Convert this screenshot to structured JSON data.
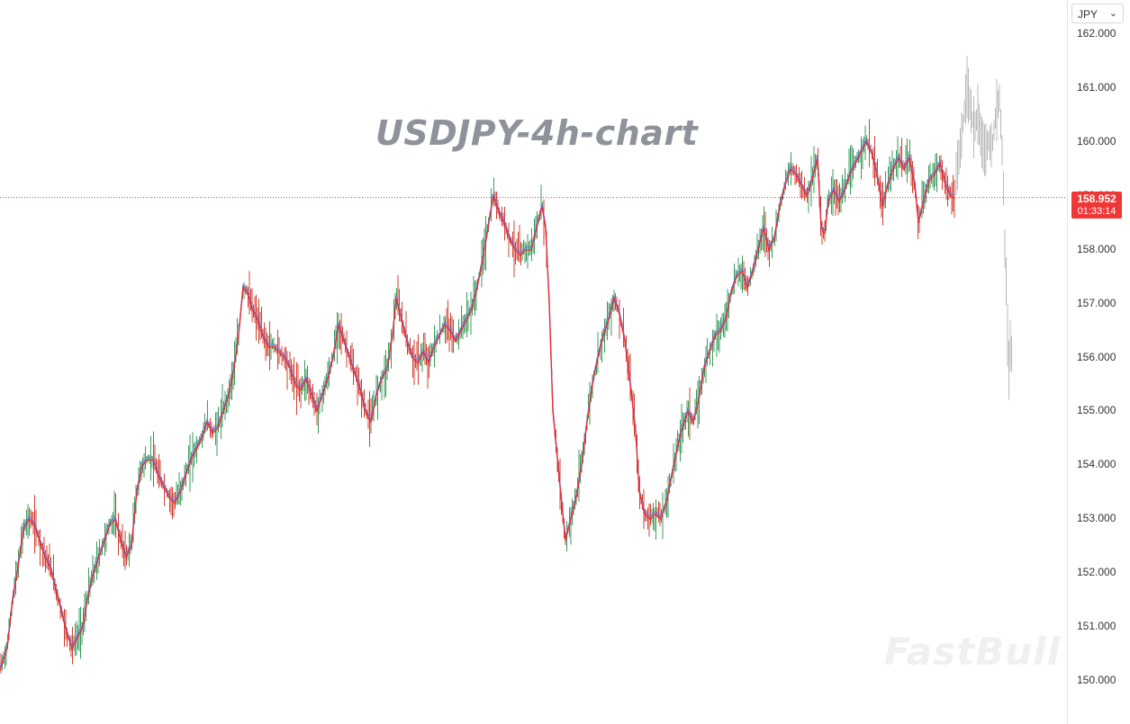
{
  "toolbar": {
    "currency": "JPY"
  },
  "watermark": "FastBull",
  "price_marker": {
    "price": "158.952",
    "countdown": "01:33:14",
    "color": "#ef3737"
  },
  "colors": {
    "up": "#3a9b5c",
    "down": "#d0402f",
    "ma_fast": "#ef2b2b",
    "ma_slow": "#6b7be3",
    "forecast": "#b8b8b8",
    "last_price_line": "#d0402f"
  },
  "chart_data": {
    "type": "candlestick",
    "title": "USDJPY-4h-chart",
    "ylabel": "",
    "y_ticks": [
      "162.000",
      "161.000",
      "160.000",
      "159.000",
      "158.000",
      "157.000",
      "156.000",
      "155.000",
      "154.000",
      "153.000",
      "152.000",
      "151.000",
      "150.000"
    ],
    "ylim": [
      149.65,
      162.3
    ],
    "last_price": 158.952,
    "grid": false,
    "close_path": [
      [
        0,
        150.2
      ],
      [
        8,
        150.6
      ],
      [
        14,
        151.5
      ],
      [
        20,
        152.1
      ],
      [
        26,
        152.8
      ],
      [
        32,
        153.0
      ],
      [
        38,
        152.9
      ],
      [
        44,
        152.6
      ],
      [
        50,
        152.3
      ],
      [
        56,
        152.1
      ],
      [
        62,
        151.7
      ],
      [
        68,
        151.3
      ],
      [
        74,
        150.9
      ],
      [
        80,
        150.6
      ],
      [
        86,
        150.8
      ],
      [
        92,
        151.0
      ],
      [
        98,
        151.6
      ],
      [
        104,
        152.0
      ],
      [
        110,
        152.3
      ],
      [
        116,
        152.6
      ],
      [
        122,
        152.9
      ],
      [
        128,
        153.0
      ],
      [
        134,
        152.6
      ],
      [
        140,
        152.3
      ],
      [
        146,
        152.5
      ],
      [
        152,
        153.5
      ],
      [
        158,
        154.0
      ],
      [
        164,
        154.1
      ],
      [
        170,
        154.1
      ],
      [
        176,
        153.8
      ],
      [
        182,
        153.6
      ],
      [
        188,
        153.4
      ],
      [
        194,
        153.3
      ],
      [
        200,
        153.5
      ],
      [
        206,
        153.8
      ],
      [
        212,
        154.1
      ],
      [
        218,
        154.3
      ],
      [
        224,
        154.5
      ],
      [
        230,
        154.8
      ],
      [
        236,
        154.6
      ],
      [
        242,
        154.7
      ],
      [
        248,
        155.0
      ],
      [
        254,
        155.3
      ],
      [
        260,
        155.8
      ],
      [
        265,
        156.4
      ],
      [
        270,
        157.3
      ],
      [
        275,
        157.2
      ],
      [
        280,
        156.9
      ],
      [
        286,
        156.7
      ],
      [
        292,
        156.4
      ],
      [
        298,
        156.2
      ],
      [
        304,
        156.2
      ],
      [
        310,
        156.1
      ],
      [
        316,
        156.0
      ],
      [
        322,
        155.8
      ],
      [
        328,
        155.5
      ],
      [
        334,
        155.4
      ],
      [
        340,
        155.6
      ],
      [
        346,
        155.3
      ],
      [
        352,
        155.0
      ],
      [
        358,
        155.3
      ],
      [
        364,
        155.6
      ],
      [
        370,
        156.0
      ],
      [
        376,
        156.6
      ],
      [
        382,
        156.3
      ],
      [
        388,
        156.0
      ],
      [
        394,
        155.7
      ],
      [
        400,
        155.4
      ],
      [
        406,
        155.0
      ],
      [
        412,
        154.8
      ],
      [
        418,
        155.3
      ],
      [
        424,
        155.6
      ],
      [
        430,
        155.8
      ],
      [
        436,
        156.4
      ],
      [
        440,
        157.1
      ],
      [
        446,
        156.7
      ],
      [
        452,
        156.3
      ],
      [
        458,
        156.0
      ],
      [
        464,
        155.9
      ],
      [
        470,
        156.1
      ],
      [
        476,
        155.9
      ],
      [
        482,
        156.2
      ],
      [
        488,
        156.4
      ],
      [
        494,
        156.6
      ],
      [
        500,
        156.5
      ],
      [
        506,
        156.3
      ],
      [
        512,
        156.5
      ],
      [
        518,
        156.7
      ],
      [
        524,
        156.9
      ],
      [
        530,
        157.3
      ],
      [
        536,
        157.8
      ],
      [
        542,
        158.4
      ],
      [
        548,
        159.0
      ],
      [
        554,
        158.7
      ],
      [
        560,
        158.5
      ],
      [
        566,
        158.2
      ],
      [
        572,
        158.0
      ],
      [
        578,
        157.9
      ],
      [
        584,
        158.0
      ],
      [
        590,
        158.0
      ],
      [
        596,
        158.4
      ],
      [
        602,
        158.8
      ],
      [
        606,
        158.4
      ],
      [
        610,
        157.0
      ],
      [
        614,
        155.0
      ],
      [
        618,
        154.3
      ],
      [
        622,
        153.6
      ],
      [
        628,
        152.6
      ],
      [
        634,
        153.0
      ],
      [
        640,
        153.4
      ],
      [
        646,
        154.0
      ],
      [
        652,
        154.8
      ],
      [
        658,
        155.5
      ],
      [
        664,
        156.0
      ],
      [
        670,
        156.4
      ],
      [
        676,
        156.7
      ],
      [
        682,
        157.1
      ],
      [
        688,
        156.8
      ],
      [
        694,
        156.3
      ],
      [
        700,
        155.5
      ],
      [
        706,
        154.6
      ],
      [
        710,
        153.5
      ],
      [
        716,
        153.1
      ],
      [
        722,
        153.0
      ],
      [
        728,
        153.1
      ],
      [
        734,
        153.0
      ],
      [
        740,
        153.3
      ],
      [
        746,
        153.8
      ],
      [
        752,
        154.3
      ],
      [
        758,
        154.7
      ],
      [
        764,
        155.0
      ],
      [
        770,
        154.8
      ],
      [
        776,
        155.2
      ],
      [
        782,
        155.8
      ],
      [
        788,
        156.1
      ],
      [
        794,
        156.4
      ],
      [
        800,
        156.5
      ],
      [
        806,
        156.7
      ],
      [
        812,
        157.2
      ],
      [
        818,
        157.5
      ],
      [
        824,
        157.6
      ],
      [
        830,
        157.3
      ],
      [
        836,
        157.6
      ],
      [
        842,
        158.0
      ],
      [
        848,
        158.4
      ],
      [
        854,
        158.0
      ],
      [
        860,
        158.2
      ],
      [
        866,
        158.8
      ],
      [
        872,
        159.2
      ],
      [
        878,
        159.5
      ],
      [
        884,
        159.4
      ],
      [
        890,
        159.2
      ],
      [
        896,
        159.0
      ],
      [
        902,
        159.3
      ],
      [
        908,
        159.7
      ],
      [
        912,
        158.4
      ],
      [
        916,
        158.3
      ],
      [
        920,
        158.9
      ],
      [
        926,
        159.1
      ],
      [
        932,
        158.9
      ],
      [
        938,
        159.1
      ],
      [
        944,
        159.4
      ],
      [
        950,
        159.6
      ],
      [
        956,
        159.8
      ],
      [
        962,
        160.0
      ],
      [
        968,
        159.8
      ],
      [
        974,
        159.4
      ],
      [
        980,
        158.8
      ],
      [
        986,
        159.2
      ],
      [
        992,
        159.5
      ],
      [
        998,
        159.7
      ],
      [
        1004,
        159.5
      ],
      [
        1010,
        159.7
      ],
      [
        1016,
        159.2
      ],
      [
        1020,
        158.5
      ],
      [
        1026,
        158.9
      ],
      [
        1032,
        159.3
      ],
      [
        1038,
        159.4
      ],
      [
        1044,
        159.6
      ],
      [
        1050,
        159.2
      ],
      [
        1056,
        159.0
      ],
      [
        1060,
        158.95
      ]
    ],
    "forecast_path": [
      [
        1062,
        159.4
      ],
      [
        1066,
        159.8
      ],
      [
        1070,
        160.4
      ],
      [
        1074,
        161.0
      ],
      [
        1078,
        160.6
      ],
      [
        1082,
        160.2
      ],
      [
        1086,
        160.5
      ],
      [
        1090,
        160.0
      ],
      [
        1094,
        159.8
      ],
      [
        1098,
        160.0
      ],
      [
        1102,
        159.9
      ],
      [
        1106,
        160.5
      ],
      [
        1110,
        160.8
      ],
      [
        1114,
        159.5
      ],
      [
        1116,
        158.0
      ],
      [
        1118,
        157.2
      ],
      [
        1120,
        155.6
      ],
      [
        1122,
        156.2
      ],
      [
        1124,
        156.0
      ]
    ]
  }
}
